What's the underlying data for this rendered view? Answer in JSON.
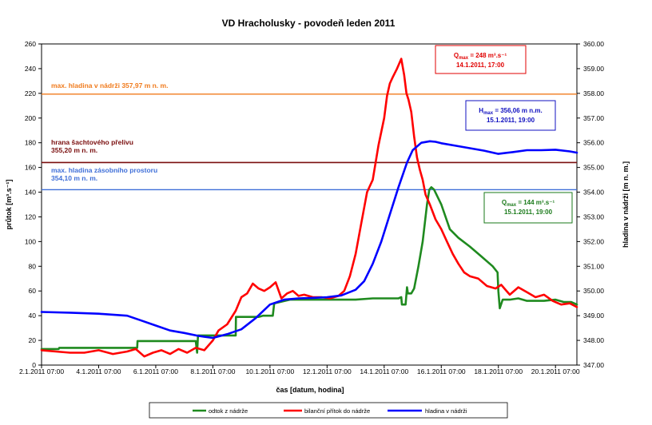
{
  "chart_data": {
    "type": "line",
    "title": "VD Hracholusky - povodeň leden 2011",
    "xlabel": "čas [datum, hodina]",
    "ylabel_left": "průtok [m³.s⁻¹]",
    "ylabel_right": "hladina v nádrži [m n. m.]",
    "ylim_left": [
      0,
      260
    ],
    "ylim_right": [
      347.0,
      360.0
    ],
    "y_ticks_left": [
      "0",
      "20",
      "40",
      "60",
      "80",
      "100",
      "120",
      "140",
      "160",
      "180",
      "200",
      "220",
      "240",
      "260"
    ],
    "y_ticks_right": [
      "347.00",
      "348.00",
      "349.00",
      "350.00",
      "351.00",
      "352.00",
      "353.00",
      "354.00",
      "355.00",
      "356.00",
      "357.00",
      "358.00",
      "359.00",
      "360.00"
    ],
    "x_range_days": [
      2,
      20.75
    ],
    "x_ticks": [
      {
        "label": "2.1.2011 07:00",
        "t": 2.0
      },
      {
        "label": "4.1.2011 07:00",
        "t": 4.0
      },
      {
        "label": "6.1.2011 07:00",
        "t": 6.0
      },
      {
        "label": "8.1.2011 07:00",
        "t": 8.0
      },
      {
        "label": "10.1.2011 07:00",
        "t": 10.0
      },
      {
        "label": "12.1.2011 07:00",
        "t": 12.0
      },
      {
        "label": "14.1.2011 07:00",
        "t": 14.0
      },
      {
        "label": "16.1.2011 07:00",
        "t": 16.0
      },
      {
        "label": "18.1.2011 07:00",
        "t": 18.0
      },
      {
        "label": "20.1.2011 07:00",
        "t": 20.0
      }
    ],
    "reference_lines": [
      {
        "name": "max-hladina",
        "label": "max. hladina v nádrži 357,97 m n. m.",
        "level": 357.97,
        "color": "#f07b1d"
      },
      {
        "name": "hrana-prelivu",
        "label1": "hrana šachtového přelivu",
        "label2": "355,20 m n. m.",
        "level": 355.2,
        "color": "#7a0e0e"
      },
      {
        "name": "zasobni-prostor",
        "label1": "max. hladina zásobního prostoru",
        "label2": "354,10 m n. m.",
        "level": 354.1,
        "color": "#3f6fd8"
      }
    ],
    "annotations": [
      {
        "name": "q-max-inflow",
        "prefix": "Q",
        "sub": "max",
        "text": " = 248 m³.s⁻¹",
        "line2": "14.1.2011, 17:00",
        "color": "#e00000"
      },
      {
        "name": "h-max",
        "prefix": "H",
        "sub": "max",
        "text": " = 356,06 m n.m.",
        "line2": "15.1.2011, 19:00",
        "color": "#1010c0"
      },
      {
        "name": "q-max-outflow",
        "prefix": "Q",
        "sub": "max",
        "text": " = 144 m³.s⁻¹",
        "line2": "15.1.2011, 19:00",
        "color": "#1a7a1a"
      }
    ],
    "legend": [
      "odtok z nádrže",
      "bilanční přítok do nádrže",
      "hladina v nádrži"
    ],
    "series": [
      {
        "name": "odtok z nádrže",
        "axis": "left",
        "color": "#1f8a1f",
        "t": [
          2.0,
          2.6,
          2.62,
          5.35,
          5.36,
          7.4,
          7.45,
          7.48,
          7.55,
          8.3,
          8.8,
          8.81,
          9.6,
          9.75,
          9.8,
          10.1,
          10.15,
          10.7,
          11.8,
          12.4,
          13.0,
          13.6,
          14.0,
          14.5,
          14.6,
          14.62,
          14.75,
          14.8,
          14.83,
          14.9,
          14.95,
          15.05,
          15.2,
          15.35,
          15.5,
          15.58,
          15.65,
          15.75,
          16.0,
          16.3,
          16.6,
          17.0,
          17.4,
          17.8,
          17.97,
          18.0,
          18.05,
          18.15,
          18.4,
          18.7,
          19.0,
          19.3,
          19.6,
          20.0,
          20.3,
          20.55,
          20.75
        ],
        "values": [
          13,
          13,
          14,
          14,
          19.5,
          19.5,
          10,
          24,
          24,
          24,
          24,
          39,
          39,
          40,
          40,
          40,
          50,
          53,
          53,
          53,
          53,
          54,
          54,
          54,
          55,
          49,
          49,
          63,
          58,
          58,
          58,
          62,
          80,
          100,
          130,
          142,
          144,
          142,
          130,
          110,
          103,
          96,
          88,
          80,
          75,
          60,
          46,
          53,
          53,
          54,
          52,
          52,
          52,
          53,
          51,
          51,
          49
        ]
      },
      {
        "name": "bilanční přítok do nádrže",
        "axis": "left",
        "color": "#ff0000",
        "t": [
          2.0,
          2.5,
          3.0,
          3.5,
          4.0,
          4.5,
          5.0,
          5.3,
          5.6,
          5.9,
          6.2,
          6.5,
          6.8,
          7.1,
          7.4,
          7.7,
          8.0,
          8.2,
          8.5,
          8.8,
          9.0,
          9.2,
          9.4,
          9.6,
          9.8,
          10.0,
          10.2,
          10.4,
          10.6,
          10.8,
          11.0,
          11.2,
          11.5,
          11.8,
          12.1,
          12.4,
          12.6,
          12.8,
          13.0,
          13.2,
          13.4,
          13.6,
          13.8,
          14.0,
          14.1,
          14.2,
          14.3,
          14.45,
          14.6,
          14.7,
          14.78,
          14.85,
          14.95,
          15.05,
          15.15,
          15.25,
          15.35,
          15.45,
          15.6,
          15.8,
          16.0,
          16.2,
          16.4,
          16.6,
          16.8,
          17.0,
          17.3,
          17.6,
          17.9,
          18.1,
          18.4,
          18.7,
          19.0,
          19.3,
          19.6,
          19.9,
          20.2,
          20.5,
          20.75
        ],
        "values": [
          12,
          11,
          10,
          10,
          12,
          9,
          11,
          13,
          7,
          10,
          12,
          9,
          13,
          10,
          14,
          12,
          20,
          28,
          33,
          44,
          55,
          58,
          66,
          62,
          60,
          63,
          67,
          54,
          58,
          60,
          56,
          57,
          55,
          55,
          54,
          56,
          60,
          72,
          90,
          115,
          140,
          150,
          178,
          200,
          218,
          228,
          233,
          240,
          248,
          235,
          220,
          215,
          205,
          185,
          168,
          158,
          150,
          138,
          130,
          118,
          110,
          100,
          90,
          82,
          75,
          72,
          70,
          64,
          62,
          65,
          57,
          63,
          59,
          55,
          57,
          52,
          49,
          50,
          47
        ]
      },
      {
        "name": "hladina v nádrži",
        "axis": "right",
        "color": "#0000ff",
        "t": [
          2.0,
          3.0,
          4.0,
          5.0,
          5.5,
          6.0,
          6.5,
          7.0,
          7.5,
          8.0,
          8.5,
          9.0,
          9.5,
          10.0,
          10.5,
          11.0,
          11.5,
          12.0,
          12.5,
          13.0,
          13.3,
          13.6,
          13.9,
          14.2,
          14.5,
          14.8,
          15.0,
          15.3,
          15.6,
          15.8,
          16.0,
          16.5,
          17.0,
          17.5,
          18.0,
          18.5,
          19.0,
          19.5,
          20.0,
          20.5,
          20.75
        ],
        "values": [
          349.15,
          349.12,
          349.08,
          349.0,
          348.8,
          348.6,
          348.4,
          348.3,
          348.18,
          348.1,
          348.25,
          348.45,
          348.9,
          349.45,
          349.65,
          349.7,
          349.72,
          349.75,
          349.82,
          350.05,
          350.4,
          351.1,
          352.0,
          353.1,
          354.2,
          355.2,
          355.7,
          356.0,
          356.06,
          356.04,
          355.98,
          355.88,
          355.78,
          355.68,
          355.55,
          355.62,
          355.7,
          355.7,
          355.72,
          355.65,
          355.6
        ]
      }
    ]
  }
}
